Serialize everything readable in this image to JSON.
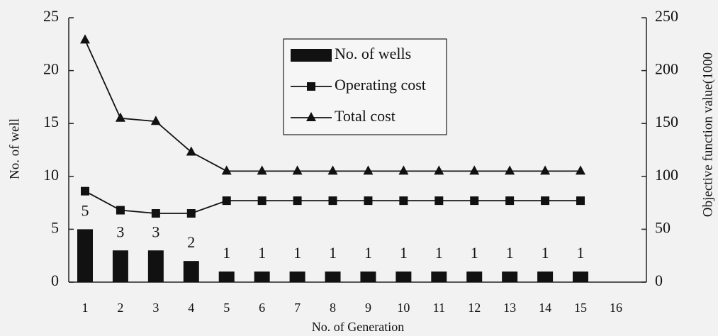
{
  "chart_data": {
    "type": "bar-line",
    "categories": [
      "1",
      "2",
      "3",
      "4",
      "5",
      "6",
      "7",
      "8",
      "9",
      "10",
      "11",
      "12",
      "13",
      "14",
      "15",
      "16"
    ],
    "series": [
      {
        "name": "No. of wells",
        "color": "#111111",
        "type": "bar",
        "axis": "y",
        "values": [
          5,
          3,
          3,
          2,
          1,
          1,
          1,
          1,
          1,
          1,
          1,
          1,
          1,
          1,
          1,
          null
        ]
      },
      {
        "name": "Operating cost",
        "color": "#111111",
        "type": "line",
        "marker": "square",
        "axis": "y2",
        "values": [
          86,
          68,
          65,
          65,
          77,
          77,
          77,
          77,
          77,
          77,
          77,
          77,
          77,
          77,
          77,
          null
        ]
      },
      {
        "name": "Total cost",
        "color": "#111111",
        "type": "line",
        "marker": "triangle",
        "axis": "y2",
        "values": [
          229,
          155,
          152,
          123,
          105,
          105,
          105,
          105,
          105,
          105,
          105,
          105,
          105,
          105,
          105,
          null
        ]
      }
    ],
    "xlabel": "No. of Generation",
    "ylabel": "No. of well",
    "y2label": "Objective function value(1000",
    "ylim": [
      0,
      25
    ],
    "yticks": [
      0,
      5,
      10,
      15,
      20,
      25
    ],
    "y2lim": [
      0,
      250
    ],
    "y2ticks": [
      0,
      50,
      100,
      150,
      200,
      250
    ],
    "data_labels": true
  }
}
